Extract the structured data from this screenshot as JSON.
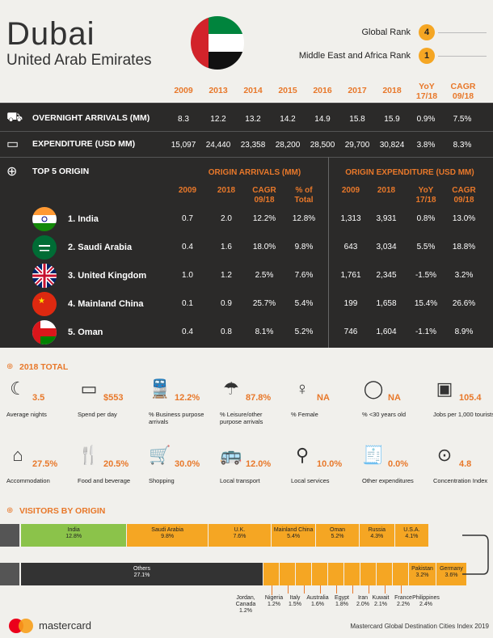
{
  "header": {
    "city": "Dubai",
    "country": "United Arab Emirates",
    "global_rank_label": "Global Rank",
    "global_rank": "4",
    "mea_rank_label": "Middle East and Africa Rank",
    "mea_rank": "1"
  },
  "years": [
    "2009",
    "2013",
    "2014",
    "2015",
    "2016",
    "2017",
    "2018",
    "YoY 17/18",
    "CAGR 09/18"
  ],
  "arrivals": {
    "label": "OVERNIGHT ARRIVALS (MM)",
    "values": [
      "8.3",
      "12.2",
      "13.2",
      "14.2",
      "14.9",
      "15.8",
      "15.9",
      "0.9%",
      "7.5%"
    ]
  },
  "expenditure": {
    "label": "EXPENDITURE (USD MM)",
    "values": [
      "15,097",
      "24,440",
      "23,358",
      "28,200",
      "28,500",
      "29,700",
      "30,824",
      "3.8%",
      "8.3%"
    ]
  },
  "origin": {
    "label": "TOP 5 ORIGIN",
    "arrivals_header": "ORIGIN ARRIVALS (MM)",
    "expenditure_header": "ORIGIN EXPENDITURE (USD MM)",
    "arr_cols": [
      "2009",
      "2018",
      "CAGR 09/18",
      "% of Total"
    ],
    "exp_cols": [
      "2009",
      "2018",
      "YoY 17/18",
      "CAGR 09/18"
    ],
    "rows": [
      {
        "name": "1. India",
        "v": [
          "0.7",
          "2.0",
          "12.2%",
          "12.8%",
          "1,313",
          "3,931",
          "0.8%",
          "13.0%"
        ]
      },
      {
        "name": "2. Saudi Arabia",
        "v": [
          "0.4",
          "1.6",
          "18.0%",
          "9.8%",
          "643",
          "3,034",
          "5.5%",
          "18.8%"
        ]
      },
      {
        "name": "3. United Kingdom",
        "v": [
          "1.0",
          "1.2",
          "2.5%",
          "7.6%",
          "1,761",
          "2,345",
          "-1.5%",
          "3.2%"
        ]
      },
      {
        "name": "4. Mainland China",
        "v": [
          "0.1",
          "0.9",
          "25.7%",
          "5.4%",
          "199",
          "1,658",
          "15.4%",
          "26.6%"
        ]
      },
      {
        "name": "5. Oman",
        "v": [
          "0.4",
          "0.8",
          "8.1%",
          "5.2%",
          "746",
          "1,604",
          "-1.1%",
          "8.9%"
        ]
      }
    ]
  },
  "total": {
    "label": "2018 TOTAL",
    "stats": [
      {
        "icon": "moon-icon",
        "glyph": "☾",
        "value": "3.5",
        "label": "Average nights"
      },
      {
        "icon": "wallet-icon",
        "glyph": "▭",
        "value": "$553",
        "label": "Spend per day"
      },
      {
        "icon": "train-icon",
        "glyph": "🚆",
        "value": "12.2%",
        "label": "% Business purpose arrivals"
      },
      {
        "icon": "umbrella-icon",
        "glyph": "☂",
        "value": "87.8%",
        "label": "% Leisure/other purpose arrivals"
      },
      {
        "icon": "female-icon",
        "glyph": "♀",
        "value": "NA",
        "label": "% Female"
      },
      {
        "icon": "age-icon",
        "glyph": "◯",
        "value": "NA",
        "label": "% <30 years old"
      },
      {
        "icon": "briefcase-icon",
        "glyph": "▣",
        "value": "105.4",
        "label": "Jobs per 1,000 tourists"
      },
      {
        "icon": "house-icon",
        "glyph": "⌂",
        "value": "27.5%",
        "label": "Accommodation"
      },
      {
        "icon": "food-icon",
        "glyph": "🍴",
        "value": "20.5%",
        "label": "Food and beverage"
      },
      {
        "icon": "cart-icon",
        "glyph": "🛒",
        "value": "30.0%",
        "label": "Shopping"
      },
      {
        "icon": "bus-icon",
        "glyph": "🚌",
        "value": "12.0%",
        "label": "Local transport"
      },
      {
        "icon": "pin-icon",
        "glyph": "⚲",
        "value": "10.0%",
        "label": "Local services"
      },
      {
        "icon": "receipt-icon",
        "glyph": "🧾",
        "value": "0.0%",
        "label": "Other expenditures"
      },
      {
        "icon": "concentration-icon",
        "glyph": "⊙",
        "value": "4.8",
        "label": "Concentration Index"
      }
    ]
  },
  "visitors": {
    "label": "VISITORS BY ORIGIN",
    "row1": [
      {
        "name": "India",
        "pct": "12.8%",
        "w": 12.8,
        "color": "#8bc34a"
      },
      {
        "name": "Saudi Arabia",
        "pct": "9.8%",
        "w": 9.8,
        "color": "#f5a623"
      },
      {
        "name": "U.K.",
        "pct": "7.6%",
        "w": 7.6,
        "color": "#f5a623"
      },
      {
        "name": "Mainland China",
        "pct": "5.4%",
        "w": 5.4,
        "color": "#f5a623"
      },
      {
        "name": "Oman",
        "pct": "5.2%",
        "w": 5.2,
        "color": "#f5a623"
      },
      {
        "name": "Russia",
        "pct": "4.3%",
        "w": 4.3,
        "color": "#f5a623"
      },
      {
        "name": "U.S.A.",
        "pct": "4.1%",
        "w": 4.1,
        "color": "#f5a623"
      }
    ],
    "others": {
      "name": "Others",
      "pct": "27.1%",
      "w": 27.1
    },
    "small": [
      {
        "name": "Jordan, Canada",
        "pct": "1.2%"
      },
      {
        "name": "Nigeria",
        "pct": "1.2%"
      },
      {
        "name": "Italy",
        "pct": "1.5%"
      },
      {
        "name": "Australia",
        "pct": "1.6%"
      },
      {
        "name": "Egypt",
        "pct": "1.8%"
      },
      {
        "name": "Iran",
        "pct": "2.0%"
      },
      {
        "name": "Kuwait",
        "pct": "2.1%"
      },
      {
        "name": "France",
        "pct": "2.2%"
      },
      {
        "name": "Philippines",
        "pct": "2.4%"
      }
    ],
    "end": [
      {
        "name": "Pakistan",
        "pct": "3.2%"
      },
      {
        "name": "Germany",
        "pct": "3.6%"
      }
    ]
  },
  "footer": {
    "brand": "mastercard",
    "source": "Mastercard Global Destination Cities Index 2019"
  }
}
